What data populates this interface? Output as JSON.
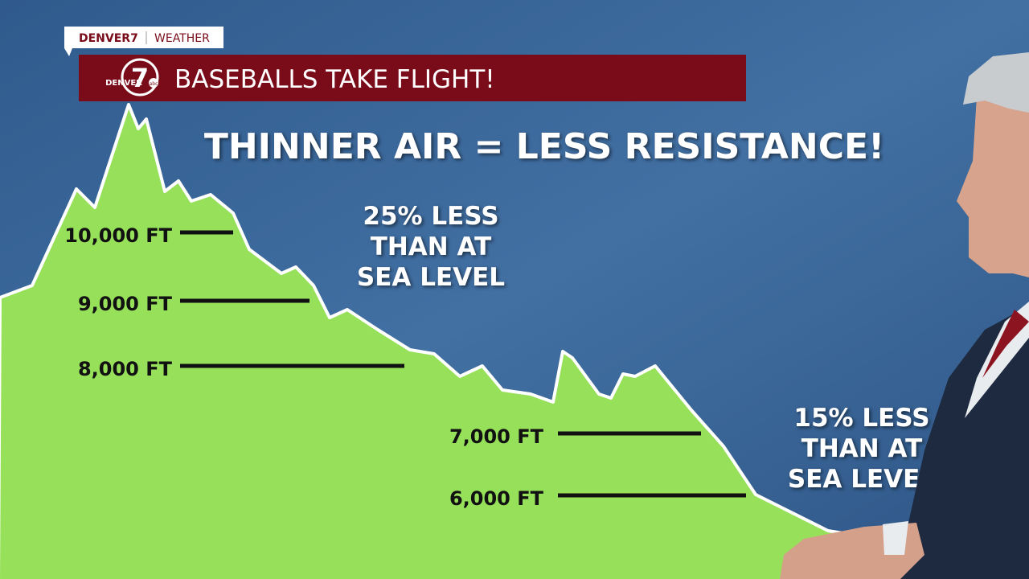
{
  "header": {
    "brand": "DENVER7",
    "section": "WEATHER"
  },
  "banner": {
    "logo_number": "7",
    "logo_text": "DENVER",
    "logo_network": "abc",
    "title": "BASEBALLS TAKE FLIGHT!"
  },
  "headline": "THINNER AIR = LESS RESISTANCE!",
  "callouts": [
    {
      "lines": [
        "25% LESS",
        "THAN AT",
        "SEA LEVEL"
      ]
    },
    {
      "lines": [
        "15% LESS",
        "THAN AT",
        "SEA LEVEL"
      ]
    }
  ],
  "elevations": [
    "10,000 FT",
    "9,000 FT",
    "8,000 FT",
    "7,000 FT",
    "6,000 FT"
  ]
}
